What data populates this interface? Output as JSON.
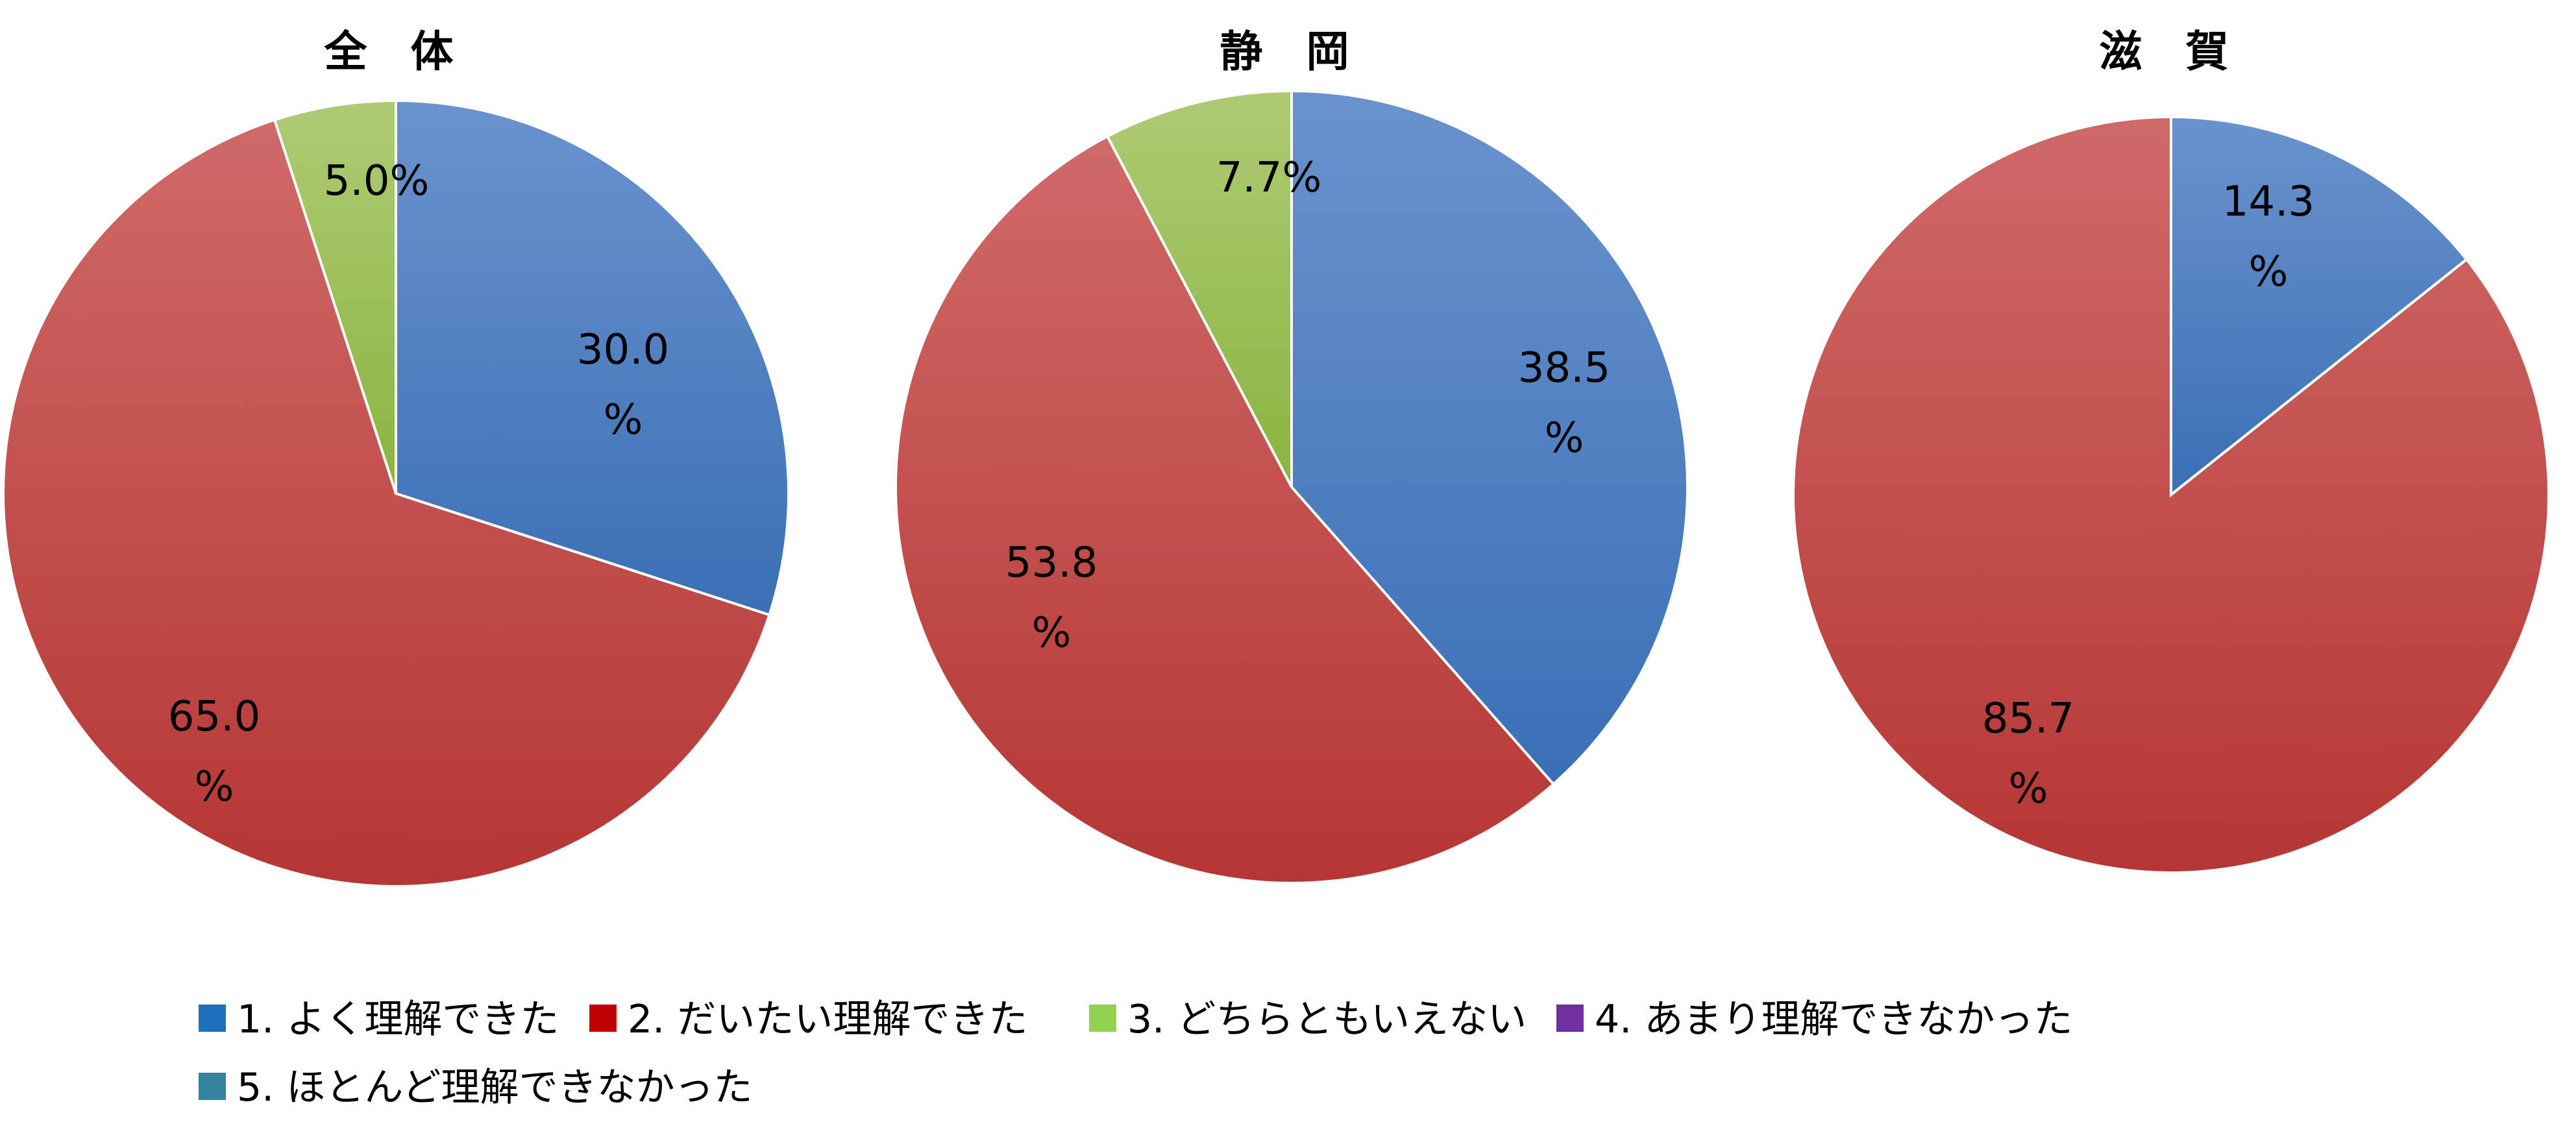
{
  "chart_data": [
    {
      "type": "pie",
      "title": "全 体",
      "slices": [
        {
          "category": "1. よく理解できた",
          "value": 30.0,
          "label_lines": [
            "30.0",
            "%"
          ]
        },
        {
          "category": "2. だいたい理解できた",
          "value": 65.0,
          "label_lines": [
            "65.0",
            "%"
          ]
        },
        {
          "category": "3. どちらともいえない",
          "value": 5.0,
          "label_lines": [
            "5.0%"
          ]
        }
      ]
    },
    {
      "type": "pie",
      "title": "静 岡",
      "slices": [
        {
          "category": "1. よく理解できた",
          "value": 38.5,
          "label_lines": [
            "38.5",
            "%"
          ]
        },
        {
          "category": "2. だいたい理解できた",
          "value": 53.8,
          "label_lines": [
            "53.8",
            "%"
          ]
        },
        {
          "category": "3. どちらともいえない",
          "value": 7.7,
          "label_lines": [
            "7.7%"
          ]
        }
      ]
    },
    {
      "type": "pie",
      "title": "滋 賀",
      "slices": [
        {
          "category": "1. よく理解できた",
          "value": 14.3,
          "label_lines": [
            "14.3",
            "%"
          ]
        },
        {
          "category": "2. だいたい理解できた",
          "value": 85.7,
          "label_lines": [
            "85.7",
            "%"
          ]
        }
      ]
    }
  ],
  "legend": {
    "placement": "bottom",
    "items": [
      {
        "label": "1. よく理解できた",
        "color": "#1f6fbf"
      },
      {
        "label": "2. だいたい理解できた",
        "color": "#c00000"
      },
      {
        "label": "3. どちらともいえない",
        "color": "#92d050"
      },
      {
        "label": "4. あまり理解できなかった",
        "color": "#7030a0"
      },
      {
        "label": "5. ほとんど理解できなかった",
        "color": "#31849b"
      }
    ]
  },
  "colors": {
    "1. よく理解できた": {
      "top": "#6a93cd",
      "bottom": "#3a6fb6"
    },
    "2. だいたい理解できた": {
      "top": "#cf6a68",
      "bottom": "#b53634"
    },
    "3. どちらともいえない": {
      "top": "#aecb74",
      "bottom": "#8ab43f"
    }
  }
}
